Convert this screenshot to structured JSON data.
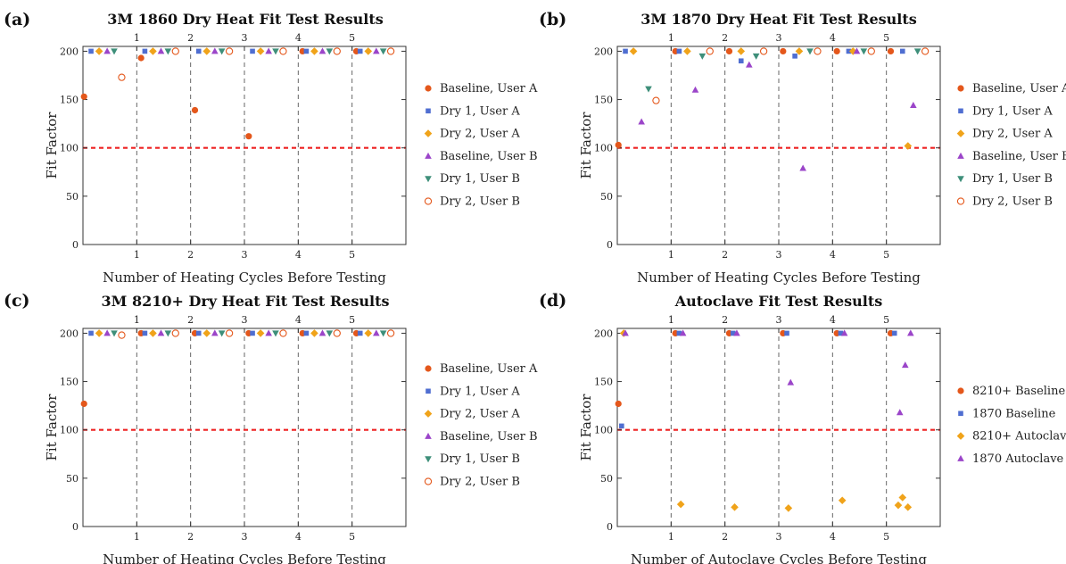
{
  "colors": {
    "series": [
      "#e4571b",
      "#4f6ed1",
      "#f0a31a",
      "#9b45c9",
      "#3e8f7a",
      "#e4571b"
    ],
    "threshold": "#ee2222",
    "cycle_line": "#666666",
    "axis": "#333333"
  },
  "chart_data": [
    {
      "type": "scatter",
      "panel_label": "(a)",
      "title": "3M 1860 Dry Heat Fit Test Results",
      "xlabel": "Number of Heating Cycles Before Testing",
      "ylabel": "Fit Factor",
      "xlim": [
        0,
        6
      ],
      "ylim": [
        0,
        205
      ],
      "xticks": [
        1,
        2,
        3,
        4,
        5
      ],
      "yticks": [
        0,
        50,
        100,
        150,
        200
      ],
      "cycle_lines": [
        1,
        2,
        3,
        4,
        5
      ],
      "threshold": 100,
      "grid": false,
      "legend_position": "right",
      "series": [
        {
          "name": "Baseline, User A",
          "marker": "circle",
          "points": [
            [
              0.02,
              153
            ],
            [
              1.08,
              193
            ],
            [
              2.08,
              139
            ],
            [
              3.08,
              112
            ],
            [
              4.08,
              200
            ],
            [
              5.08,
              200
            ]
          ]
        },
        {
          "name": "Dry 1, User A",
          "marker": "square",
          "points": [
            [
              0.15,
              200
            ],
            [
              1.15,
              200
            ],
            [
              2.15,
              200
            ],
            [
              3.15,
              200
            ],
            [
              4.15,
              200
            ],
            [
              5.15,
              200
            ]
          ]
        },
        {
          "name": "Dry 2, User A",
          "marker": "diamond",
          "points": [
            [
              0.3,
              200
            ],
            [
              1.3,
              200
            ],
            [
              2.3,
              200
            ],
            [
              3.3,
              200
            ],
            [
              4.3,
              200
            ],
            [
              5.3,
              200
            ]
          ]
        },
        {
          "name": "Baseline, User B",
          "marker": "triangle-up",
          "points": [
            [
              0.45,
              200
            ],
            [
              1.45,
              200
            ],
            [
              2.45,
              200
            ],
            [
              3.45,
              200
            ],
            [
              4.45,
              200
            ],
            [
              5.45,
              200
            ]
          ]
        },
        {
          "name": "Dry 1, User B",
          "marker": "triangle-down",
          "points": [
            [
              0.58,
              200
            ],
            [
              1.58,
              200
            ],
            [
              2.58,
              200
            ],
            [
              3.58,
              200
            ],
            [
              4.58,
              200
            ],
            [
              5.58,
              200
            ]
          ]
        },
        {
          "name": "Dry 2, User B",
          "marker": "open-circle",
          "points": [
            [
              0.72,
              173
            ],
            [
              1.72,
              200
            ],
            [
              2.72,
              200
            ],
            [
              3.72,
              200
            ],
            [
              4.72,
              200
            ],
            [
              5.72,
              200
            ]
          ]
        }
      ]
    },
    {
      "type": "scatter",
      "panel_label": "(b)",
      "title": "3M 1870 Dry Heat Fit Test Results",
      "xlabel": "Number of Heating Cycles Before Testing",
      "ylabel": "Fit Factor",
      "xlim": [
        0,
        6
      ],
      "ylim": [
        0,
        205
      ],
      "xticks": [
        1,
        2,
        3,
        4,
        5
      ],
      "yticks": [
        0,
        50,
        100,
        150,
        200
      ],
      "cycle_lines": [
        1,
        2,
        3,
        4,
        5
      ],
      "threshold": 100,
      "grid": false,
      "legend_position": "right",
      "series": [
        {
          "name": "Baseline, User A",
          "marker": "circle",
          "points": [
            [
              0.02,
              103
            ],
            [
              1.08,
              200
            ],
            [
              2.08,
              200
            ],
            [
              3.08,
              200
            ],
            [
              4.08,
              200
            ],
            [
              5.08,
              200
            ]
          ]
        },
        {
          "name": "Dry 1, User A",
          "marker": "square",
          "points": [
            [
              0.15,
              200
            ],
            [
              1.15,
              200
            ],
            [
              2.3,
              190
            ],
            [
              3.3,
              195
            ],
            [
              4.3,
              200
            ],
            [
              5.3,
              200
            ]
          ]
        },
        {
          "name": "Dry 2, User A",
          "marker": "diamond",
          "points": [
            [
              0.3,
              200
            ],
            [
              1.3,
              200
            ],
            [
              2.3,
              200
            ],
            [
              3.38,
              200
            ],
            [
              4.38,
              200
            ],
            [
              5.4,
              102
            ]
          ]
        },
        {
          "name": "Baseline, User B",
          "marker": "triangle-up",
          "points": [
            [
              0.45,
              127
            ],
            [
              1.45,
              160
            ],
            [
              2.45,
              186
            ],
            [
              3.45,
              79
            ],
            [
              4.45,
              200
            ],
            [
              5.5,
              144
            ]
          ]
        },
        {
          "name": "Dry 1, User B",
          "marker": "triangle-down",
          "points": [
            [
              0.58,
              161
            ],
            [
              1.58,
              195
            ],
            [
              2.58,
              195
            ],
            [
              3.58,
              200
            ],
            [
              4.58,
              200
            ],
            [
              5.58,
              200
            ]
          ]
        },
        {
          "name": "Dry 2, User B",
          "marker": "open-circle",
          "points": [
            [
              0.72,
              149
            ],
            [
              1.72,
              200
            ],
            [
              2.72,
              200
            ],
            [
              3.72,
              200
            ],
            [
              4.72,
              200
            ],
            [
              5.72,
              200
            ]
          ]
        }
      ]
    },
    {
      "type": "scatter",
      "panel_label": "(c)",
      "title": "3M 8210+ Dry Heat Fit Test Results",
      "xlabel": "Number of Heating Cycles Before Testing",
      "ylabel": "Fit Factor",
      "xlim": [
        0,
        6
      ],
      "ylim": [
        0,
        205
      ],
      "xticks": [
        1,
        2,
        3,
        4,
        5
      ],
      "yticks": [
        0,
        50,
        100,
        150,
        200
      ],
      "cycle_lines": [
        1,
        2,
        3,
        4,
        5
      ],
      "threshold": 100,
      "grid": false,
      "legend_position": "right",
      "series": [
        {
          "name": "Baseline, User A",
          "marker": "circle",
          "points": [
            [
              0.02,
              127
            ],
            [
              1.08,
              200
            ],
            [
              2.08,
              200
            ],
            [
              3.08,
              200
            ],
            [
              4.08,
              200
            ],
            [
              5.08,
              200
            ]
          ]
        },
        {
          "name": "Dry 1, User A",
          "marker": "square",
          "points": [
            [
              0.15,
              200
            ],
            [
              1.15,
              200
            ],
            [
              2.15,
              200
            ],
            [
              3.15,
              200
            ],
            [
              4.15,
              200
            ],
            [
              5.15,
              200
            ]
          ]
        },
        {
          "name": "Dry 2, User A",
          "marker": "diamond",
          "points": [
            [
              0.3,
              200
            ],
            [
              1.3,
              200
            ],
            [
              2.3,
              200
            ],
            [
              3.3,
              200
            ],
            [
              4.3,
              200
            ],
            [
              5.3,
              200
            ]
          ]
        },
        {
          "name": "Baseline, User B",
          "marker": "triangle-up",
          "points": [
            [
              0.45,
              200
            ],
            [
              1.45,
              200
            ],
            [
              2.45,
              200
            ],
            [
              3.45,
              200
            ],
            [
              4.45,
              200
            ],
            [
              5.45,
              200
            ]
          ]
        },
        {
          "name": "Dry 1, User B",
          "marker": "triangle-down",
          "points": [
            [
              0.58,
              200
            ],
            [
              1.58,
              200
            ],
            [
              2.58,
              200
            ],
            [
              3.58,
              200
            ],
            [
              4.58,
              200
            ],
            [
              5.58,
              200
            ]
          ]
        },
        {
          "name": "Dry 2, User B",
          "marker": "open-circle",
          "points": [
            [
              0.72,
              198
            ],
            [
              1.72,
              200
            ],
            [
              2.72,
              200
            ],
            [
              3.72,
              200
            ],
            [
              4.72,
              200
            ],
            [
              5.72,
              200
            ]
          ]
        }
      ]
    },
    {
      "type": "scatter",
      "panel_label": "(d)",
      "title": "Autoclave Fit Test Results",
      "xlabel": "Number of Autoclave Cycles Before Testing",
      "ylabel": "Fit Factor",
      "xlim": [
        0,
        6
      ],
      "ylim": [
        0,
        205
      ],
      "xticks": [
        1,
        2,
        3,
        4,
        5
      ],
      "yticks": [
        0,
        50,
        100,
        150,
        200
      ],
      "cycle_lines": [
        1,
        2,
        3,
        4,
        5
      ],
      "threshold": 100,
      "grid": false,
      "legend_position": "right",
      "series": [
        {
          "name": "8210+ Baseline",
          "marker": "circle",
          "points": [
            [
              0.02,
              127
            ],
            [
              1.08,
              200
            ],
            [
              2.08,
              200
            ],
            [
              3.08,
              200
            ],
            [
              4.08,
              200
            ],
            [
              5.08,
              200
            ]
          ]
        },
        {
          "name": "1870 Baseline",
          "marker": "square",
          "points": [
            [
              0.08,
              104
            ],
            [
              1.15,
              200
            ],
            [
              2.15,
              200
            ],
            [
              3.15,
              200
            ],
            [
              4.15,
              200
            ],
            [
              5.15,
              200
            ]
          ]
        },
        {
          "name": "8210+ Autoclave",
          "marker": "diamond",
          "points": [
            [
              0.12,
              200
            ],
            [
              1.18,
              23
            ],
            [
              2.18,
              20
            ],
            [
              3.18,
              19
            ],
            [
              4.18,
              27
            ],
            [
              5.22,
              22
            ],
            [
              5.3,
              30
            ],
            [
              5.4,
              20
            ]
          ]
        },
        {
          "name": "1870 Autoclave",
          "marker": "triangle-up",
          "points": [
            [
              0.15,
              200
            ],
            [
              1.22,
              200
            ],
            [
              2.22,
              200
            ],
            [
              3.22,
              149
            ],
            [
              4.22,
              200
            ],
            [
              5.25,
              118
            ],
            [
              5.35,
              167
            ],
            [
              5.45,
              200
            ]
          ]
        }
      ]
    }
  ]
}
